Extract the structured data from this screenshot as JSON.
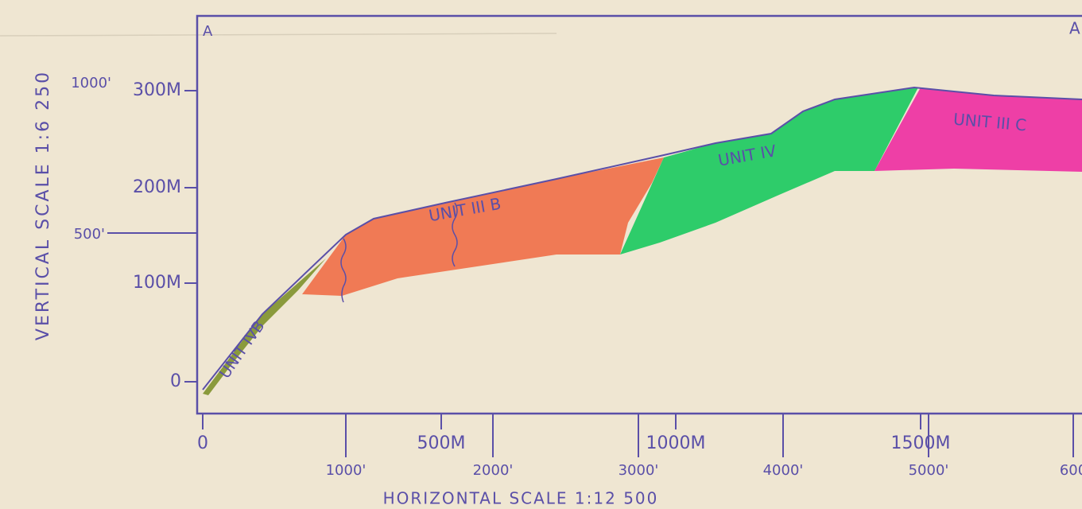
{
  "section": {
    "start_label": "A",
    "end_label": "A"
  },
  "vertical_axis": {
    "title": "VERTICAL SCALE 1:6 250",
    "metric_labels": [
      "300M",
      "200M",
      "100M",
      "0"
    ],
    "feet_labels": [
      "1000'",
      "500'"
    ]
  },
  "horizontal_axis": {
    "title": "HORIZONTAL SCALE 1:12 500",
    "metric_labels": [
      "0",
      "500M",
      "1000M",
      "1500M"
    ],
    "feet_labels": [
      "1000'",
      "2000'",
      "3000'",
      "4000'",
      "5000'",
      "600"
    ]
  },
  "units": [
    {
      "label": "UNIT IVB"
    },
    {
      "label": "UNIT III B"
    },
    {
      "label": "UNIT IV"
    },
    {
      "label": "UNIT III C"
    }
  ]
}
